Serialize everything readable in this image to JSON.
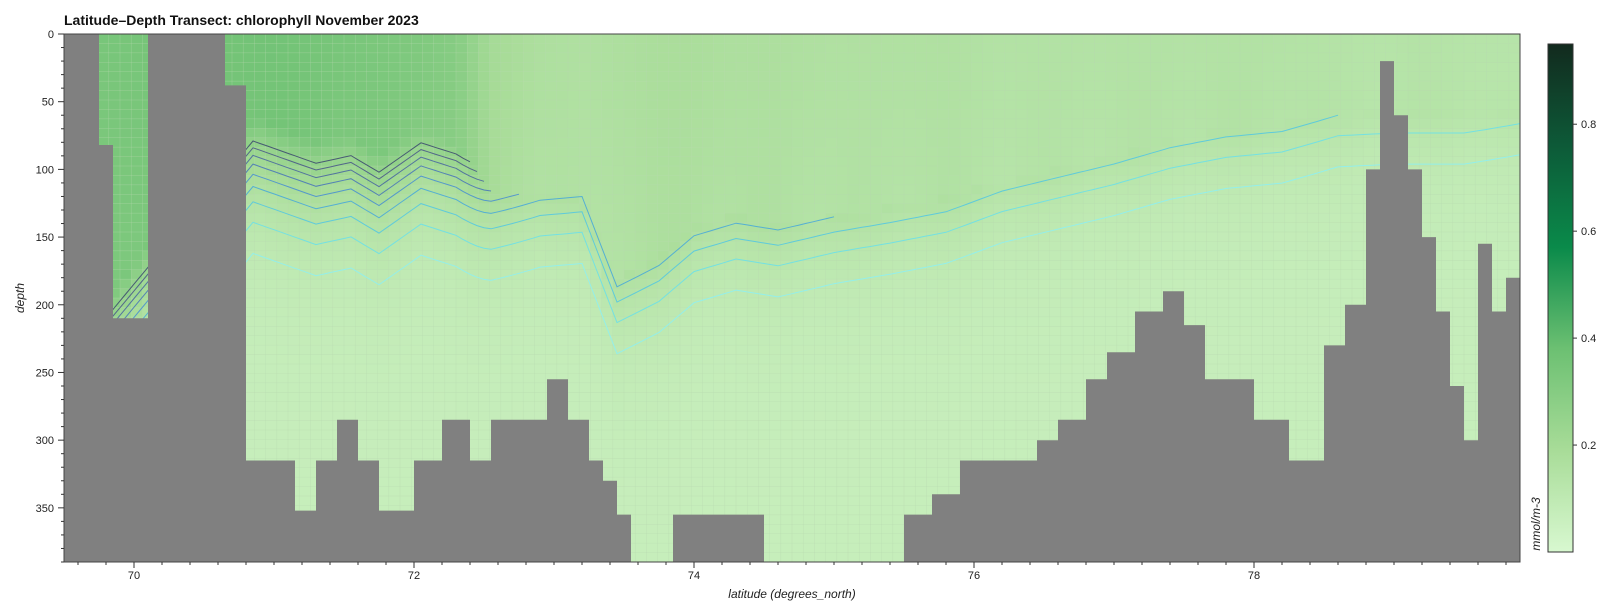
{
  "chart_data": {
    "type": "heatmap",
    "title": "Latitude–Depth Transect: chlorophyll November 2023",
    "xlabel": "latitude (degrees_north)",
    "ylabel": "depth",
    "xlim": [
      69.5,
      79.9
    ],
    "ylim": [
      390,
      0
    ],
    "x_ticks": [
      70,
      72,
      74,
      76,
      78
    ],
    "y_ticks": [
      0,
      50,
      100,
      150,
      200,
      250,
      300,
      350
    ],
    "colorbar": {
      "label": "mmol/m-3",
      "range": [
        0.0,
        0.95
      ],
      "ticks": [
        0.2,
        0.4,
        0.6,
        0.8
      ],
      "colors": [
        "#d8f8d0",
        "#a8dc98",
        "#6cc072",
        "#0a8a4a",
        "#0d5a38",
        "#122a1e"
      ]
    },
    "land_color": "#808080",
    "contour_levels": [
      0.1,
      0.12,
      0.14,
      0.16,
      0.18,
      0.2,
      0.22,
      0.24,
      0.26
    ],
    "contour_colors": [
      "#8ff0f0",
      "#6de0e8",
      "#55c8e0",
      "#4aaad8",
      "#4a90d0",
      "#4a78b8",
      "#4a68a0",
      "#4a5a88",
      "#3e4c70"
    ],
    "bathymetry": {
      "latitude": [
        69.5,
        69.75,
        69.85,
        70.0,
        70.1,
        70.5,
        70.65,
        70.8,
        71.0,
        71.15,
        71.3,
        71.45,
        71.6,
        71.75,
        72.0,
        72.2,
        72.4,
        72.55,
        72.65,
        72.8,
        72.95,
        73.1,
        73.25,
        73.35,
        73.45,
        73.55,
        73.7,
        73.85,
        74.0,
        74.3,
        74.5,
        74.6,
        75.0,
        75.3,
        75.5,
        75.7,
        75.9,
        76.2,
        76.45,
        76.6,
        76.8,
        76.95,
        77.15,
        77.35,
        77.5,
        77.65,
        77.8,
        78.0,
        78.25,
        78.5,
        78.65,
        78.8,
        78.9,
        79.0,
        79.1,
        79.2,
        79.3,
        79.4,
        79.5,
        79.6,
        79.7,
        79.8,
        79.9
      ],
      "bottom_depth": [
        0,
        82,
        210,
        210,
        0,
        0,
        38,
        315,
        315,
        352,
        315,
        285,
        315,
        352,
        315,
        285,
        315,
        285,
        285,
        285,
        255,
        285,
        315,
        330,
        355,
        395,
        395,
        355,
        355,
        355,
        395,
        395,
        395,
        395,
        355,
        340,
        315,
        315,
        300,
        285,
        255,
        235,
        205,
        190,
        215,
        255,
        255,
        285,
        315,
        230,
        200,
        100,
        20,
        60,
        100,
        150,
        205,
        260,
        300,
        155,
        205,
        180,
        190
      ]
    },
    "sections": [
      {
        "latitude": 69.75,
        "surface": 0.34,
        "mix_depth": 200
      },
      {
        "latitude": 70.85,
        "surface": 0.36,
        "mix_depth": 60
      },
      {
        "latitude": 71.3,
        "surface": 0.35,
        "mix_depth": 78
      },
      {
        "latitude": 71.55,
        "surface": 0.34,
        "mix_depth": 74
      },
      {
        "latitude": 71.75,
        "surface": 0.33,
        "mix_depth": 88
      },
      {
        "latitude": 72.05,
        "surface": 0.32,
        "mix_depth": 68
      },
      {
        "latitude": 72.3,
        "surface": 0.3,
        "mix_depth": 80
      },
      {
        "latitude": 72.55,
        "surface": 0.2,
        "mix_depth": 116
      },
      {
        "latitude": 72.9,
        "surface": 0.17,
        "mix_depth": 118
      },
      {
        "latitude": 73.2,
        "surface": 0.16,
        "mix_depth": 120
      },
      {
        "latitude": 73.45,
        "surface": 0.17,
        "mix_depth": 182
      },
      {
        "latitude": 73.75,
        "surface": 0.18,
        "mix_depth": 162
      },
      {
        "latitude": 74.0,
        "surface": 0.18,
        "mix_depth": 140
      },
      {
        "latitude": 74.3,
        "surface": 0.17,
        "mix_depth": 135
      },
      {
        "latitude": 74.6,
        "surface": 0.17,
        "mix_depth": 140
      },
      {
        "latitude": 75.0,
        "surface": 0.16,
        "mix_depth": 135
      },
      {
        "latitude": 75.4,
        "surface": 0.16,
        "mix_depth": 128
      },
      {
        "latitude": 75.8,
        "surface": 0.16,
        "mix_depth": 120
      },
      {
        "latitude": 76.2,
        "surface": 0.15,
        "mix_depth": 110
      },
      {
        "latitude": 76.6,
        "surface": 0.15,
        "mix_depth": 100
      },
      {
        "latitude": 77.0,
        "surface": 0.15,
        "mix_depth": 90
      },
      {
        "latitude": 77.4,
        "surface": 0.15,
        "mix_depth": 78
      },
      {
        "latitude": 77.8,
        "surface": 0.15,
        "mix_depth": 70
      },
      {
        "latitude": 78.2,
        "surface": 0.15,
        "mix_depth": 66
      },
      {
        "latitude": 78.6,
        "surface": 0.14,
        "mix_depth": 60
      },
      {
        "latitude": 79.0,
        "surface": 0.14,
        "mix_depth": 58
      },
      {
        "latitude": 79.5,
        "surface": 0.14,
        "mix_depth": 58
      },
      {
        "latitude": 79.9,
        "surface": 0.13,
        "mix_depth": 58
      }
    ]
  }
}
